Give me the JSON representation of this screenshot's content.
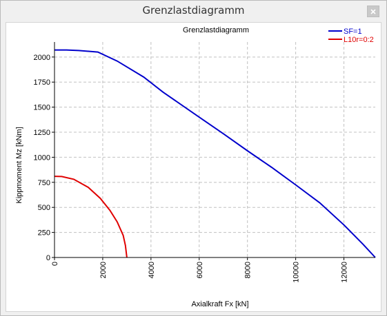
{
  "window": {
    "title": "Grenzlastdiagramm",
    "close_icon": "close-icon"
  },
  "colors": {
    "sf_series": "#0000cc",
    "l10r_series": "#e00000",
    "grid": "#c0c0c0"
  },
  "chart_data": {
    "type": "line",
    "title": "Grenzlastdiagramm",
    "xlabel": "Axialkraft Fx [kN]",
    "ylabel": "Kippmoment Mz [kNm]",
    "xlim": [
      0,
      13300
    ],
    "ylim": [
      0,
      2150
    ],
    "xticks": [
      0,
      2000,
      4000,
      6000,
      8000,
      10000,
      12000
    ],
    "xtick_labels": [
      "0",
      "2000",
      "4000",
      "6000",
      "8000",
      "10000",
      "12000"
    ],
    "yticks": [
      0,
      250,
      500,
      750,
      1000,
      1250,
      1500,
      1750,
      2000
    ],
    "ytick_labels": [
      "0",
      "250",
      "500",
      "750",
      "1000",
      "1250",
      "1500",
      "1750",
      "2000"
    ],
    "grid": true,
    "legend_position": "top-right",
    "series": [
      {
        "name": "SF=1",
        "color": "#0000cc",
        "x": [
          0,
          500,
          1000,
          1800,
          2600,
          3700,
          4500,
          6000,
          7000,
          8000,
          9000,
          10000,
          11000,
          12000,
          12800,
          13300
        ],
        "y": [
          2070,
          2070,
          2065,
          2050,
          1960,
          1800,
          1650,
          1400,
          1235,
          1065,
          900,
          725,
          545,
          325,
          130,
          0
        ]
      },
      {
        "name": "L10r=0:2",
        "color": "#e00000",
        "x": [
          0,
          300,
          800,
          1400,
          1900,
          2300,
          2600,
          2850,
          2940,
          3000
        ],
        "y": [
          810,
          808,
          780,
          700,
          590,
          470,
          355,
          220,
          120,
          0
        ]
      }
    ]
  }
}
